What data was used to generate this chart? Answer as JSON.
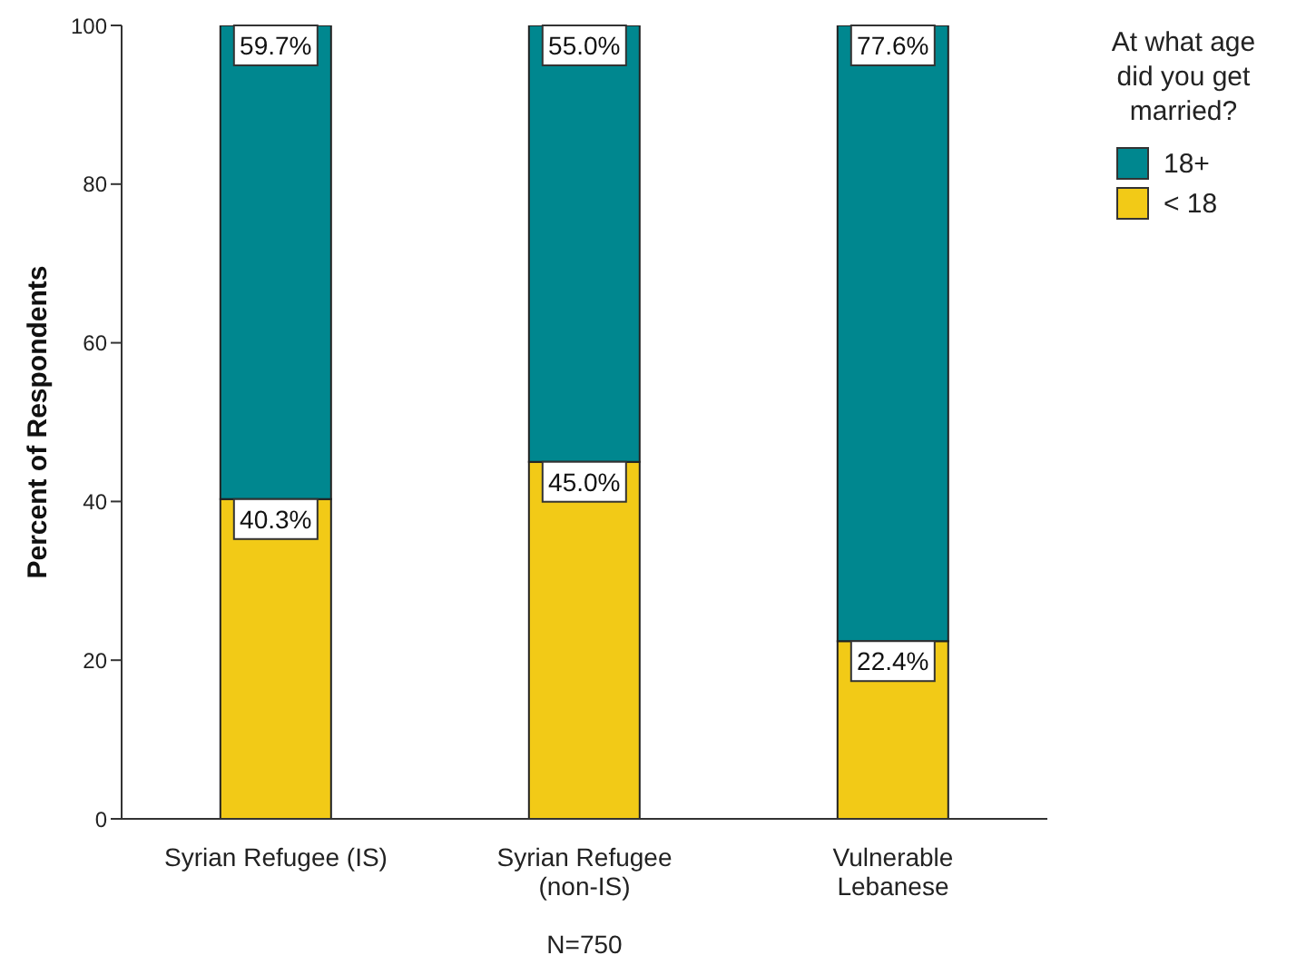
{
  "chart_data": {
    "type": "bar",
    "stacked": true,
    "xlabel": "N=750",
    "ylabel": "Percent of Respondents",
    "legend_title": "At what age did you get married?",
    "legend": "top right",
    "categories": [
      "Syrian Refugee (IS)",
      "Syrian Refugee\n(non-IS)",
      "Vulnerable\nLebanese"
    ],
    "ylim": [
      0,
      100
    ],
    "yticks": [
      0,
      20,
      40,
      60,
      80,
      100
    ],
    "series": [
      {
        "name": "< 18",
        "color": "#f2ca17",
        "values": [
          40.3,
          45.0,
          22.4
        ],
        "value_labels": [
          "40.3%",
          "45.0%",
          "22.4%"
        ]
      },
      {
        "name": "18+",
        "color": "#00878f",
        "values": [
          59.7,
          55.0,
          77.6
        ],
        "value_labels": [
          "59.7%",
          "55.0%",
          "77.6%"
        ]
      }
    ]
  }
}
